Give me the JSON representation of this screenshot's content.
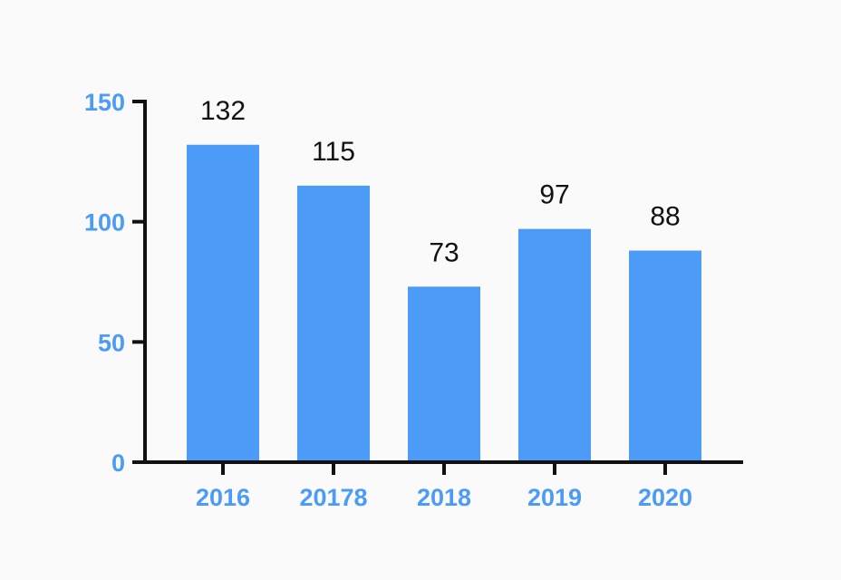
{
  "chart_data": {
    "type": "bar",
    "title": "",
    "xlabel": "",
    "ylabel": "",
    "categories": [
      "2016",
      "20178",
      "2018",
      "2019",
      "2020"
    ],
    "values": [
      132,
      115,
      73,
      97,
      88
    ],
    "data_labels": [
      "132",
      "115",
      "73",
      "97",
      "88"
    ],
    "ylim": [
      0,
      150
    ],
    "yticks": [
      0,
      50,
      100,
      150
    ],
    "ytick_labels": [
      "0",
      "50",
      "100",
      "150"
    ],
    "grid": false,
    "legend": "none",
    "colors": {
      "bar": "#4c9bf7",
      "tick_label": "#4c9bf7",
      "axis": "#111111",
      "data_label": "#111111"
    }
  }
}
